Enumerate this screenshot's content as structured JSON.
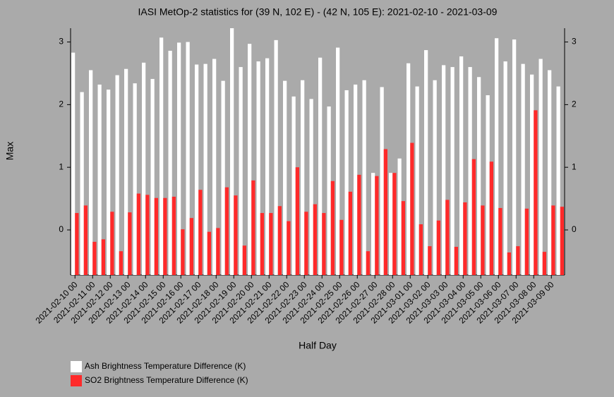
{
  "chart_data": {
    "type": "bar",
    "title": "IASI MetOp-2 statistics for (39 N, 102 E) - (42 N, 105 E): 2021-02-10 - 2021-03-09",
    "xlabel": "Half Day",
    "ylabel": "Max",
    "categories": [
      "2021-02-10 00",
      null,
      "2021-02-11 00",
      null,
      "2021-02-12 00",
      null,
      "2021-02-13 00",
      null,
      "2021-02-14 00",
      null,
      "2021-02-15 00",
      null,
      "2021-02-16 00",
      null,
      "2021-02-17 00",
      null,
      "2021-02-18 00",
      null,
      "2021-02-19 00",
      null,
      "2021-02-20 00",
      null,
      "2021-02-21 00",
      null,
      "2021-02-22 00",
      null,
      "2021-02-23 00",
      null,
      "2021-02-24 00",
      null,
      "2021-02-25 00",
      null,
      "2021-02-26 00",
      null,
      "2021-02-27 00",
      null,
      "2021-02-28 00",
      null,
      "2021-03-01 00",
      null,
      "2021-03-02 00",
      null,
      "2021-03-03 00",
      null,
      "2021-03-04 00",
      null,
      "2021-03-05 00",
      null,
      "2021-03-06 00",
      null,
      "2021-03-07 00",
      null,
      "2021-03-08 00",
      null,
      "2021-03-09 00",
      null
    ],
    "series": [
      {
        "name": "Ash Brightness Temperature Difference (K)",
        "color": "#ffffff",
        "values": [
          2.83,
          2.2,
          2.55,
          2.32,
          2.24,
          2.47,
          2.57,
          2.34,
          2.67,
          2.41,
          3.07,
          2.86,
          2.99,
          3.0,
          2.64,
          2.65,
          2.73,
          2.38,
          3.22,
          2.6,
          2.97,
          2.69,
          2.74,
          3.03,
          2.38,
          2.13,
          2.39,
          2.09,
          2.75,
          1.97,
          2.91,
          2.23,
          2.32,
          2.39,
          0.91,
          2.28,
          0.91,
          1.14,
          2.66,
          2.29,
          2.87,
          2.39,
          2.63,
          2.6,
          2.77,
          2.6,
          2.44,
          2.15,
          3.06,
          2.69,
          3.04,
          2.65,
          2.48,
          2.73,
          2.55,
          2.29
        ]
      },
      {
        "name": "SO2 Brightness Temperature Difference (K)",
        "color": "#ff2a2a",
        "values": [
          0.27,
          0.39,
          -0.19,
          -0.15,
          0.29,
          -0.34,
          0.28,
          0.58,
          0.56,
          0.51,
          0.51,
          0.53,
          0.01,
          0.19,
          0.64,
          -0.03,
          0.03,
          0.68,
          0.55,
          -0.25,
          0.79,
          0.27,
          0.27,
          0.38,
          0.14,
          1.0,
          0.29,
          0.41,
          0.27,
          0.78,
          0.16,
          0.61,
          0.88,
          -0.34,
          0.86,
          1.29,
          0.91,
          0.46,
          1.39,
          0.09,
          -0.26,
          0.15,
          0.48,
          -0.27,
          0.44,
          1.13,
          0.39,
          1.09,
          0.35,
          -0.36,
          -0.26,
          0.34,
          1.91,
          -0.35,
          0.39,
          0.37
        ]
      }
    ],
    "ylim": [
      -0.72,
      3.22
    ],
    "yticks": [
      0,
      1,
      2,
      3
    ],
    "legend": "bottom-left"
  }
}
